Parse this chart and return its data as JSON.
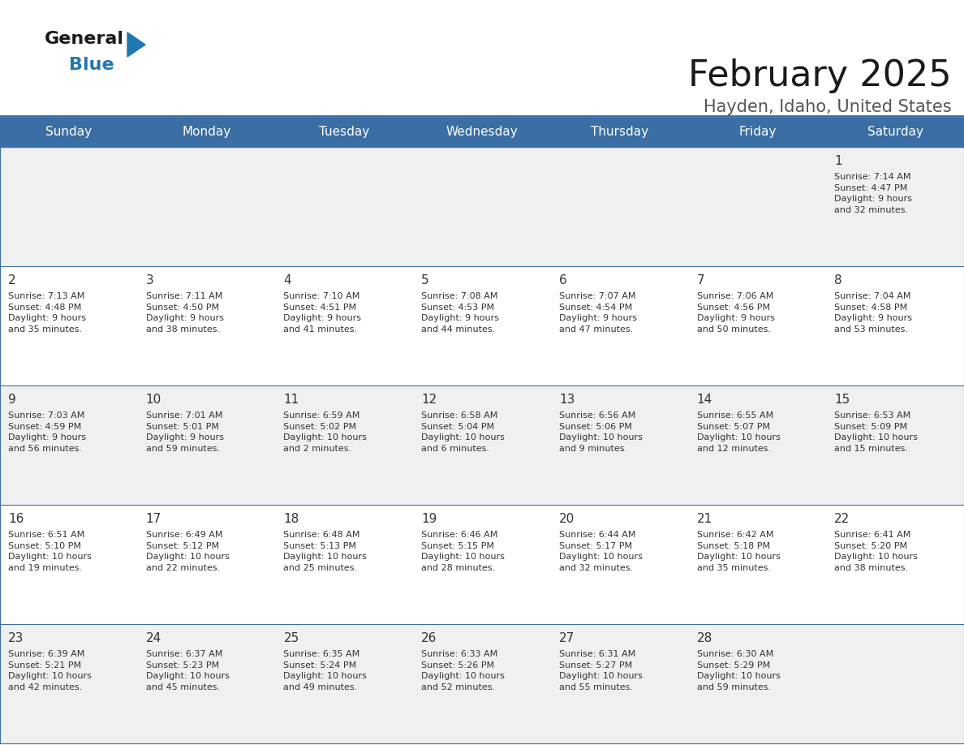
{
  "title": "February 2025",
  "subtitle": "Hayden, Idaho, United States",
  "header_bg_color": "#3A6EA5",
  "header_text_color": "#FFFFFF",
  "cell_bg_color_light": "#F0F0F0",
  "cell_bg_color_white": "#FFFFFF",
  "grid_line_color": "#3A6EA5",
  "text_color": "#333333",
  "days_of_week": [
    "Sunday",
    "Monday",
    "Tuesday",
    "Wednesday",
    "Thursday",
    "Friday",
    "Saturday"
  ],
  "calendar": [
    [
      {
        "day": "",
        "info": ""
      },
      {
        "day": "",
        "info": ""
      },
      {
        "day": "",
        "info": ""
      },
      {
        "day": "",
        "info": ""
      },
      {
        "day": "",
        "info": ""
      },
      {
        "day": "",
        "info": ""
      },
      {
        "day": "1",
        "info": "Sunrise: 7:14 AM\nSunset: 4:47 PM\nDaylight: 9 hours\nand 32 minutes."
      }
    ],
    [
      {
        "day": "2",
        "info": "Sunrise: 7:13 AM\nSunset: 4:48 PM\nDaylight: 9 hours\nand 35 minutes."
      },
      {
        "day": "3",
        "info": "Sunrise: 7:11 AM\nSunset: 4:50 PM\nDaylight: 9 hours\nand 38 minutes."
      },
      {
        "day": "4",
        "info": "Sunrise: 7:10 AM\nSunset: 4:51 PM\nDaylight: 9 hours\nand 41 minutes."
      },
      {
        "day": "5",
        "info": "Sunrise: 7:08 AM\nSunset: 4:53 PM\nDaylight: 9 hours\nand 44 minutes."
      },
      {
        "day": "6",
        "info": "Sunrise: 7:07 AM\nSunset: 4:54 PM\nDaylight: 9 hours\nand 47 minutes."
      },
      {
        "day": "7",
        "info": "Sunrise: 7:06 AM\nSunset: 4:56 PM\nDaylight: 9 hours\nand 50 minutes."
      },
      {
        "day": "8",
        "info": "Sunrise: 7:04 AM\nSunset: 4:58 PM\nDaylight: 9 hours\nand 53 minutes."
      }
    ],
    [
      {
        "day": "9",
        "info": "Sunrise: 7:03 AM\nSunset: 4:59 PM\nDaylight: 9 hours\nand 56 minutes."
      },
      {
        "day": "10",
        "info": "Sunrise: 7:01 AM\nSunset: 5:01 PM\nDaylight: 9 hours\nand 59 minutes."
      },
      {
        "day": "11",
        "info": "Sunrise: 6:59 AM\nSunset: 5:02 PM\nDaylight: 10 hours\nand 2 minutes."
      },
      {
        "day": "12",
        "info": "Sunrise: 6:58 AM\nSunset: 5:04 PM\nDaylight: 10 hours\nand 6 minutes."
      },
      {
        "day": "13",
        "info": "Sunrise: 6:56 AM\nSunset: 5:06 PM\nDaylight: 10 hours\nand 9 minutes."
      },
      {
        "day": "14",
        "info": "Sunrise: 6:55 AM\nSunset: 5:07 PM\nDaylight: 10 hours\nand 12 minutes."
      },
      {
        "day": "15",
        "info": "Sunrise: 6:53 AM\nSunset: 5:09 PM\nDaylight: 10 hours\nand 15 minutes."
      }
    ],
    [
      {
        "day": "16",
        "info": "Sunrise: 6:51 AM\nSunset: 5:10 PM\nDaylight: 10 hours\nand 19 minutes."
      },
      {
        "day": "17",
        "info": "Sunrise: 6:49 AM\nSunset: 5:12 PM\nDaylight: 10 hours\nand 22 minutes."
      },
      {
        "day": "18",
        "info": "Sunrise: 6:48 AM\nSunset: 5:13 PM\nDaylight: 10 hours\nand 25 minutes."
      },
      {
        "day": "19",
        "info": "Sunrise: 6:46 AM\nSunset: 5:15 PM\nDaylight: 10 hours\nand 28 minutes."
      },
      {
        "day": "20",
        "info": "Sunrise: 6:44 AM\nSunset: 5:17 PM\nDaylight: 10 hours\nand 32 minutes."
      },
      {
        "day": "21",
        "info": "Sunrise: 6:42 AM\nSunset: 5:18 PM\nDaylight: 10 hours\nand 35 minutes."
      },
      {
        "day": "22",
        "info": "Sunrise: 6:41 AM\nSunset: 5:20 PM\nDaylight: 10 hours\nand 38 minutes."
      }
    ],
    [
      {
        "day": "23",
        "info": "Sunrise: 6:39 AM\nSunset: 5:21 PM\nDaylight: 10 hours\nand 42 minutes."
      },
      {
        "day": "24",
        "info": "Sunrise: 6:37 AM\nSunset: 5:23 PM\nDaylight: 10 hours\nand 45 minutes."
      },
      {
        "day": "25",
        "info": "Sunrise: 6:35 AM\nSunset: 5:24 PM\nDaylight: 10 hours\nand 49 minutes."
      },
      {
        "day": "26",
        "info": "Sunrise: 6:33 AM\nSunset: 5:26 PM\nDaylight: 10 hours\nand 52 minutes."
      },
      {
        "day": "27",
        "info": "Sunrise: 6:31 AM\nSunset: 5:27 PM\nDaylight: 10 hours\nand 55 minutes."
      },
      {
        "day": "28",
        "info": "Sunrise: 6:30 AM\nSunset: 5:29 PM\nDaylight: 10 hours\nand 59 minutes."
      },
      {
        "day": "",
        "info": ""
      }
    ]
  ],
  "title_fontsize": 32,
  "subtitle_fontsize": 15,
  "dow_fontsize": 11,
  "day_num_fontsize": 11,
  "info_fontsize": 8,
  "logo_color_general": "#1a1a1a",
  "logo_color_blue": "#2077B4",
  "logo_triangle_color": "#2077B4",
  "fig_width": 11.88,
  "fig_height": 9.18,
  "dpi": 100
}
